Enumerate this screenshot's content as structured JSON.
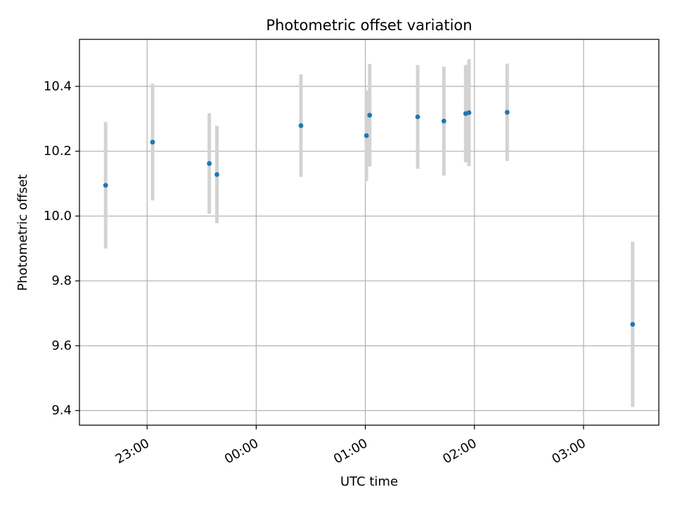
{
  "chart_data": {
    "type": "scatter",
    "title": "Photometric offset variation",
    "xlabel": "UTC time",
    "ylabel": "Photometric offset",
    "x_unit": "hours (UTC), values past midnight given as 24 + h",
    "xlim": [
      22.38,
      27.69
    ],
    "ylim": [
      9.355,
      10.545
    ],
    "x_ticks": [
      {
        "value": 23,
        "label": "23:00"
      },
      {
        "value": 24,
        "label": "00:00"
      },
      {
        "value": 25,
        "label": "01:00"
      },
      {
        "value": 26,
        "label": "02:00"
      },
      {
        "value": 27,
        "label": "03:00"
      }
    ],
    "y_ticks": [
      {
        "value": 9.4,
        "label": "9.4"
      },
      {
        "value": 9.6,
        "label": "9.6"
      },
      {
        "value": 9.8,
        "label": "9.8"
      },
      {
        "value": 10.0,
        "label": "10.0"
      },
      {
        "value": 10.2,
        "label": "10.2"
      },
      {
        "value": 10.4,
        "label": "10.4"
      }
    ],
    "grid": true,
    "points": [
      {
        "x": 22.62,
        "y": 10.095,
        "err": 0.195
      },
      {
        "x": 23.05,
        "y": 10.228,
        "err": 0.18
      },
      {
        "x": 23.57,
        "y": 10.162,
        "err": 0.155
      },
      {
        "x": 23.64,
        "y": 10.128,
        "err": 0.15
      },
      {
        "x": 24.41,
        "y": 10.279,
        "err": 0.158
      },
      {
        "x": 25.01,
        "y": 10.248,
        "err": 0.14
      },
      {
        "x": 25.04,
        "y": 10.311,
        "err": 0.158
      },
      {
        "x": 25.48,
        "y": 10.306,
        "err": 0.16
      },
      {
        "x": 25.72,
        "y": 10.293,
        "err": 0.168
      },
      {
        "x": 25.92,
        "y": 10.316,
        "err": 0.15
      },
      {
        "x": 25.95,
        "y": 10.319,
        "err": 0.165
      },
      {
        "x": 26.3,
        "y": 10.32,
        "err": 0.15
      },
      {
        "x": 27.45,
        "y": 9.666,
        "err": 0.255
      }
    ],
    "colors": {
      "marker": "#1f77b4",
      "errorbar": "#d3d3d3",
      "grid": "#b0b0b0",
      "axes": "#000000"
    }
  }
}
